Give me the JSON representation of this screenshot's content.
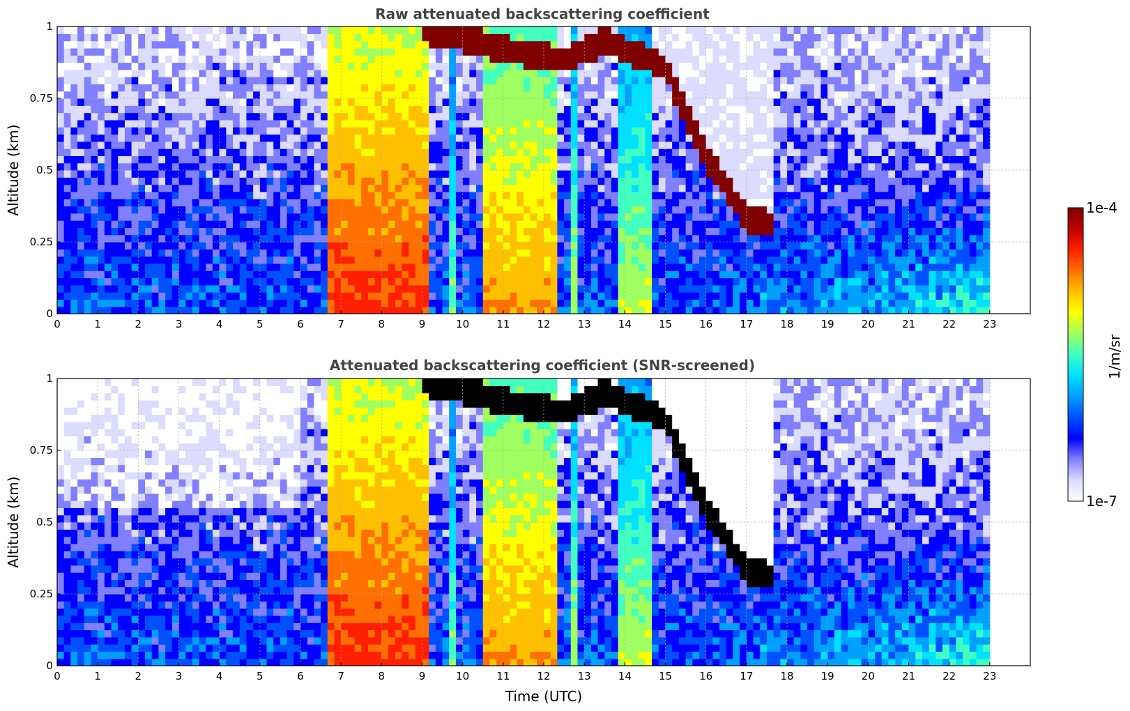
{
  "colormap": [
    "#ffffff",
    "#dcdcff",
    "#8080ff",
    "#0000ff",
    "#0050ff",
    "#00a0ff",
    "#00e0ff",
    "#40ffc0",
    "#a0ff60",
    "#ffff00",
    "#ffc000",
    "#ff7000",
    "#ff2000",
    "#c00000",
    "#800000"
  ],
  "chart_data": [
    {
      "type": "heatmap",
      "title": "Raw attenuated backscattering coefficient",
      "xlabel": "",
      "ylabel": "Altitude (km)",
      "xlim": [
        0,
        24
      ],
      "ylim": [
        0,
        1
      ],
      "xticks": [
        "0",
        "1",
        "2",
        "3",
        "4",
        "5",
        "6",
        "7",
        "8",
        "9",
        "10",
        "11",
        "12",
        "13",
        "14",
        "15",
        "16",
        "17",
        "18",
        "19",
        "20",
        "21",
        "22",
        "23"
      ],
      "yticks": [
        "0",
        "0.25",
        "0.5",
        "0.75",
        "1"
      ],
      "grid": true,
      "data_end_hour": 23,
      "saturated_color": "#800000",
      "cloud_layer_top_km": [
        [
          9.0,
          0.99
        ],
        [
          10.5,
          0.94
        ],
        [
          12.5,
          0.88
        ],
        [
          13.5,
          0.95
        ],
        [
          15.0,
          0.86
        ],
        [
          16.0,
          0.55
        ],
        [
          17.0,
          0.33
        ],
        [
          17.7,
          0.31
        ]
      ],
      "high_signal_bands": [
        {
          "start": 6.6,
          "end": 9.1,
          "level": 0.85
        },
        {
          "start": 9.6,
          "end": 9.8,
          "level": 0.55
        },
        {
          "start": 10.5,
          "end": 12.3,
          "level": 0.75
        },
        {
          "start": 12.7,
          "end": 12.9,
          "level": 0.6
        },
        {
          "start": 13.8,
          "end": 14.7,
          "level": 0.6
        }
      ]
    },
    {
      "type": "heatmap",
      "title": "Attenuated backscattering coefficient (SNR-screened)",
      "xlabel": "Time (UTC)",
      "ylabel": "Altitude (km)",
      "xlim": [
        0,
        24
      ],
      "ylim": [
        0,
        1
      ],
      "xticks": [
        "0",
        "1",
        "2",
        "3",
        "4",
        "5",
        "6",
        "7",
        "8",
        "9",
        "10",
        "11",
        "12",
        "13",
        "14",
        "15",
        "16",
        "17",
        "18",
        "19",
        "20",
        "21",
        "22",
        "23"
      ],
      "yticks": [
        "0",
        "0.25",
        "0.5",
        "0.75",
        "1"
      ],
      "grid": true,
      "data_end_hour": 23,
      "saturated_color": "#000000",
      "cloud_layer_top_km": [
        [
          9.0,
          0.99
        ],
        [
          10.5,
          0.94
        ],
        [
          12.5,
          0.88
        ],
        [
          13.5,
          0.95
        ],
        [
          15.0,
          0.86
        ],
        [
          16.0,
          0.55
        ],
        [
          17.0,
          0.33
        ],
        [
          17.7,
          0.31
        ]
      ],
      "high_signal_bands": [
        {
          "start": 6.6,
          "end": 9.1,
          "level": 0.85
        },
        {
          "start": 9.6,
          "end": 9.8,
          "level": 0.55
        },
        {
          "start": 10.5,
          "end": 12.3,
          "level": 0.75
        },
        {
          "start": 12.7,
          "end": 12.9,
          "level": 0.6
        },
        {
          "start": 13.8,
          "end": 14.7,
          "level": 0.6
        }
      ]
    }
  ],
  "colorbar": {
    "label": "1/m/sr",
    "max_label": "1e-4",
    "min_label": "1e-7",
    "scale": "log",
    "range": [
      1e-07,
      0.0001
    ]
  }
}
